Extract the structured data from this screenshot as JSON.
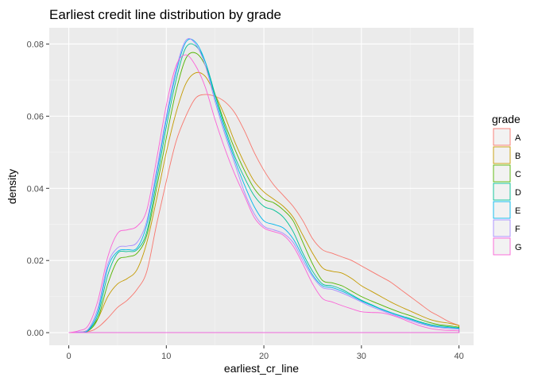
{
  "chart_data": {
    "type": "line",
    "title": "Earliest credit line distribution by grade",
    "xlabel": "earliest_cr_line",
    "ylabel": "density",
    "xlim": [
      -2,
      41.5
    ],
    "ylim": [
      -0.0035,
      0.0845
    ],
    "x_ticks": [
      "0",
      "10",
      "20",
      "30",
      "40"
    ],
    "y_ticks": [
      "0.00",
      "0.02",
      "0.04",
      "0.06",
      "0.08"
    ],
    "x_tick_values": [
      0,
      10,
      20,
      30,
      40
    ],
    "y_tick_values": [
      0.0,
      0.02,
      0.04,
      0.06,
      0.08
    ],
    "grid": true,
    "legend": {
      "title": "grade",
      "placement": "right"
    },
    "series": [
      {
        "name": "A",
        "color": "#F8766D",
        "points": [
          [
            0,
            0
          ],
          [
            2,
            0.0003
          ],
          [
            3,
            0.0015
          ],
          [
            4,
            0.004
          ],
          [
            5,
            0.007
          ],
          [
            6,
            0.009
          ],
          [
            7,
            0.012
          ],
          [
            8,
            0.017
          ],
          [
            9,
            0.03
          ],
          [
            10,
            0.042
          ],
          [
            11,
            0.053
          ],
          [
            12,
            0.06
          ],
          [
            13,
            0.065
          ],
          [
            14,
            0.066
          ],
          [
            15,
            0.0655
          ],
          [
            16,
            0.064
          ],
          [
            17,
            0.061
          ],
          [
            18,
            0.056
          ],
          [
            19,
            0.05
          ],
          [
            20,
            0.045
          ],
          [
            21,
            0.041
          ],
          [
            22,
            0.038
          ],
          [
            23,
            0.035
          ],
          [
            24,
            0.031
          ],
          [
            25,
            0.026
          ],
          [
            26,
            0.023
          ],
          [
            27,
            0.022
          ],
          [
            28,
            0.021
          ],
          [
            29,
            0.02
          ],
          [
            30,
            0.0185
          ],
          [
            31,
            0.017
          ],
          [
            32,
            0.0155
          ],
          [
            33,
            0.014
          ],
          [
            34,
            0.012
          ],
          [
            35,
            0.01
          ],
          [
            36,
            0.008
          ],
          [
            37,
            0.006
          ],
          [
            38,
            0.0045
          ],
          [
            39,
            0.003
          ],
          [
            40,
            0.002
          ]
        ]
      },
      {
        "name": "B",
        "color": "#C49A00",
        "points": [
          [
            0,
            0
          ],
          [
            1,
            0.0001
          ],
          [
            2,
            0.0008
          ],
          [
            3,
            0.004
          ],
          [
            4,
            0.01
          ],
          [
            5,
            0.0135
          ],
          [
            6,
            0.015
          ],
          [
            7,
            0.0175
          ],
          [
            8,
            0.025
          ],
          [
            9,
            0.037
          ],
          [
            10,
            0.05
          ],
          [
            11,
            0.061
          ],
          [
            12,
            0.069
          ],
          [
            13,
            0.072
          ],
          [
            14,
            0.071
          ],
          [
            15,
            0.066
          ],
          [
            16,
            0.06
          ],
          [
            17,
            0.053
          ],
          [
            18,
            0.047
          ],
          [
            19,
            0.042
          ],
          [
            20,
            0.039
          ],
          [
            21,
            0.037
          ],
          [
            22,
            0.035
          ],
          [
            23,
            0.032
          ],
          [
            24,
            0.027
          ],
          [
            25,
            0.022
          ],
          [
            26,
            0.018
          ],
          [
            27,
            0.017
          ],
          [
            28,
            0.0165
          ],
          [
            29,
            0.015
          ],
          [
            30,
            0.013
          ],
          [
            31,
            0.0115
          ],
          [
            32,
            0.01
          ],
          [
            33,
            0.0085
          ],
          [
            34,
            0.0072
          ],
          [
            35,
            0.006
          ],
          [
            36,
            0.0048
          ],
          [
            37,
            0.0037
          ],
          [
            38,
            0.003
          ],
          [
            39,
            0.0026
          ],
          [
            40,
            0.002
          ]
        ]
      },
      {
        "name": "C",
        "color": "#53B400",
        "points": [
          [
            0,
            0
          ],
          [
            1,
            0.0001
          ],
          [
            2,
            0.0005
          ],
          [
            3,
            0.004
          ],
          [
            4,
            0.0135
          ],
          [
            5,
            0.02
          ],
          [
            6,
            0.021
          ],
          [
            7,
            0.022
          ],
          [
            8,
            0.027
          ],
          [
            9,
            0.04
          ],
          [
            10,
            0.054
          ],
          [
            11,
            0.067
          ],
          [
            12,
            0.076
          ],
          [
            13,
            0.0775
          ],
          [
            14,
            0.074
          ],
          [
            15,
            0.066
          ],
          [
            16,
            0.058
          ],
          [
            17,
            0.051
          ],
          [
            18,
            0.045
          ],
          [
            19,
            0.04
          ],
          [
            20,
            0.037
          ],
          [
            21,
            0.036
          ],
          [
            22,
            0.034
          ],
          [
            23,
            0.031
          ],
          [
            24,
            0.025
          ],
          [
            25,
            0.019
          ],
          [
            26,
            0.0145
          ],
          [
            27,
            0.0138
          ],
          [
            28,
            0.013
          ],
          [
            29,
            0.0115
          ],
          [
            30,
            0.01
          ],
          [
            31,
            0.0088
          ],
          [
            32,
            0.0077
          ],
          [
            33,
            0.0066
          ],
          [
            34,
            0.0056
          ],
          [
            35,
            0.0047
          ],
          [
            36,
            0.0037
          ],
          [
            37,
            0.0028
          ],
          [
            38,
            0.0022
          ],
          [
            39,
            0.0019
          ],
          [
            40,
            0.0015
          ]
        ]
      },
      {
        "name": "D",
        "color": "#00C094",
        "points": [
          [
            0,
            0
          ],
          [
            1,
            0.0001
          ],
          [
            2,
            0.0006
          ],
          [
            3,
            0.005
          ],
          [
            4,
            0.016
          ],
          [
            5,
            0.022
          ],
          [
            6,
            0.0225
          ],
          [
            7,
            0.023
          ],
          [
            8,
            0.028
          ],
          [
            9,
            0.042
          ],
          [
            10,
            0.057
          ],
          [
            11,
            0.07
          ],
          [
            12,
            0.079
          ],
          [
            13,
            0.0795
          ],
          [
            14,
            0.075
          ],
          [
            15,
            0.066
          ],
          [
            16,
            0.057
          ],
          [
            17,
            0.049
          ],
          [
            18,
            0.043
          ],
          [
            19,
            0.038
          ],
          [
            20,
            0.035
          ],
          [
            21,
            0.034
          ],
          [
            22,
            0.032
          ],
          [
            23,
            0.028
          ],
          [
            24,
            0.022
          ],
          [
            25,
            0.017
          ],
          [
            26,
            0.0135
          ],
          [
            27,
            0.013
          ],
          [
            28,
            0.012
          ],
          [
            29,
            0.0105
          ],
          [
            30,
            0.009
          ],
          [
            31,
            0.0078
          ],
          [
            32,
            0.0066
          ],
          [
            33,
            0.0056
          ],
          [
            34,
            0.0047
          ],
          [
            35,
            0.0039
          ],
          [
            36,
            0.003
          ],
          [
            37,
            0.0023
          ],
          [
            38,
            0.0019
          ],
          [
            39,
            0.0016
          ],
          [
            40,
            0.0013
          ]
        ]
      },
      {
        "name": "E",
        "color": "#00B6EB",
        "points": [
          [
            0,
            0
          ],
          [
            1,
            0.0001
          ],
          [
            2,
            0.0007
          ],
          [
            3,
            0.006
          ],
          [
            4,
            0.018
          ],
          [
            5,
            0.0225
          ],
          [
            6,
            0.023
          ],
          [
            7,
            0.0235
          ],
          [
            8,
            0.03
          ],
          [
            9,
            0.044
          ],
          [
            10,
            0.059
          ],
          [
            11,
            0.072
          ],
          [
            12,
            0.0805
          ],
          [
            13,
            0.0805
          ],
          [
            14,
            0.075
          ],
          [
            15,
            0.065
          ],
          [
            16,
            0.056
          ],
          [
            17,
            0.048
          ],
          [
            18,
            0.041
          ],
          [
            19,
            0.035
          ],
          [
            20,
            0.031
          ],
          [
            21,
            0.03
          ],
          [
            22,
            0.029
          ],
          [
            23,
            0.026
          ],
          [
            24,
            0.021
          ],
          [
            25,
            0.016
          ],
          [
            26,
            0.013
          ],
          [
            27,
            0.0125
          ],
          [
            28,
            0.0115
          ],
          [
            29,
            0.0102
          ],
          [
            30,
            0.0088
          ],
          [
            31,
            0.0076
          ],
          [
            32,
            0.0065
          ],
          [
            33,
            0.0055
          ],
          [
            34,
            0.0046
          ],
          [
            35,
            0.0037
          ],
          [
            36,
            0.0028
          ],
          [
            37,
            0.002
          ],
          [
            38,
            0.0016
          ],
          [
            39,
            0.0014
          ],
          [
            40,
            0.0012
          ]
        ]
      },
      {
        "name": "F",
        "color": "#A58AFF",
        "points": [
          [
            0,
            0
          ],
          [
            1,
            0.0002
          ],
          [
            2,
            0.001
          ],
          [
            3,
            0.007
          ],
          [
            4,
            0.019
          ],
          [
            5,
            0.0235
          ],
          [
            6,
            0.024
          ],
          [
            7,
            0.025
          ],
          [
            8,
            0.031
          ],
          [
            9,
            0.045
          ],
          [
            10,
            0.06
          ],
          [
            11,
            0.073
          ],
          [
            12,
            0.081
          ],
          [
            13,
            0.08
          ],
          [
            14,
            0.074
          ],
          [
            15,
            0.064
          ],
          [
            16,
            0.055
          ],
          [
            17,
            0.047
          ],
          [
            18,
            0.039
          ],
          [
            19,
            0.033
          ],
          [
            20,
            0.0295
          ],
          [
            21,
            0.0285
          ],
          [
            22,
            0.0275
          ],
          [
            23,
            0.025
          ],
          [
            24,
            0.02
          ],
          [
            25,
            0.0155
          ],
          [
            26,
            0.0125
          ],
          [
            27,
            0.012
          ],
          [
            28,
            0.011
          ],
          [
            29,
            0.0098
          ],
          [
            30,
            0.0085
          ],
          [
            31,
            0.0072
          ],
          [
            32,
            0.0062
          ],
          [
            33,
            0.0052
          ],
          [
            34,
            0.0043
          ],
          [
            35,
            0.0034
          ],
          [
            36,
            0.0025
          ],
          [
            37,
            0.0018
          ],
          [
            38,
            0.0014
          ],
          [
            39,
            0.0011
          ],
          [
            40,
            0.001
          ]
        ]
      },
      {
        "name": "G",
        "color": "#FB61D7",
        "points": [
          [
            0,
            0
          ],
          [
            1,
            0.0005
          ],
          [
            2,
            0.002
          ],
          [
            3,
            0.009
          ],
          [
            4,
            0.021
          ],
          [
            5,
            0.0275
          ],
          [
            6,
            0.0285
          ],
          [
            7,
            0.0295
          ],
          [
            8,
            0.034
          ],
          [
            9,
            0.048
          ],
          [
            10,
            0.063
          ],
          [
            11,
            0.074
          ],
          [
            12,
            0.077
          ],
          [
            13,
            0.074
          ],
          [
            14,
            0.068
          ],
          [
            15,
            0.059
          ],
          [
            16,
            0.051
          ],
          [
            17,
            0.044
          ],
          [
            18,
            0.038
          ],
          [
            19,
            0.032
          ],
          [
            20,
            0.029
          ],
          [
            21,
            0.028
          ],
          [
            22,
            0.027
          ],
          [
            23,
            0.024
          ],
          [
            24,
            0.019
          ],
          [
            25,
            0.0135
          ],
          [
            26,
            0.0095
          ],
          [
            27,
            0.0085
          ],
          [
            28,
            0.0075
          ],
          [
            29,
            0.0066
          ],
          [
            30,
            0.0058
          ],
          [
            31,
            0.0056
          ],
          [
            32,
            0.0055
          ],
          [
            33,
            0.0049
          ],
          [
            34,
            0.004
          ],
          [
            35,
            0.0029
          ],
          [
            36,
            0.0019
          ],
          [
            37,
            0.0012
          ],
          [
            38,
            0.0008
          ],
          [
            39,
            0.0006
          ],
          [
            40,
            0.0005
          ]
        ]
      }
    ]
  }
}
